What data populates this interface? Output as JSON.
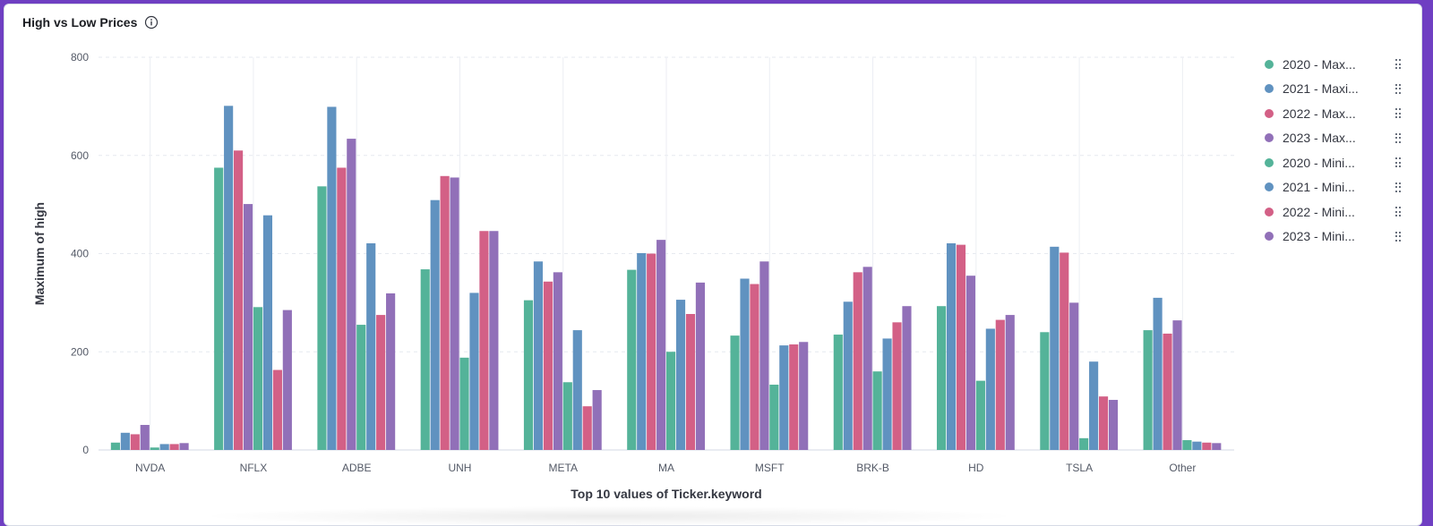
{
  "panel": {
    "title": "High vs Low Prices",
    "info_icon": "info-icon"
  },
  "colors": {
    "2020": "#54b399",
    "2021": "#6092c0",
    "2022": "#d36086",
    "2023": "#9170b8",
    "frame": "#6f3fc2"
  },
  "legend": {
    "items": [
      {
        "label": "2020 - Max...",
        "color": "#54b399"
      },
      {
        "label": "2021 - Maxi...",
        "color": "#6092c0"
      },
      {
        "label": "2022 - Max...",
        "color": "#d36086"
      },
      {
        "label": "2023 - Max...",
        "color": "#9170b8"
      },
      {
        "label": "2020 - Mini...",
        "color": "#54b399"
      },
      {
        "label": "2021 - Mini...",
        "color": "#6092c0"
      },
      {
        "label": "2022 - Mini...",
        "color": "#d36086"
      },
      {
        "label": "2023 - Mini...",
        "color": "#9170b8"
      }
    ]
  },
  "chart_data": {
    "type": "bar",
    "title": "High vs Low Prices",
    "xlabel": "Top 10 values of Ticker.keyword",
    "ylabel": "Maximum of high",
    "ylim": [
      0,
      800
    ],
    "yticks": [
      0,
      200,
      400,
      600,
      800
    ],
    "grid": true,
    "legend_position": "right",
    "categories": [
      "NVDA",
      "NFLX",
      "ADBE",
      "UNH",
      "META",
      "MA",
      "MSFT",
      "BRK-B",
      "HD",
      "TSLA",
      "Other"
    ],
    "series": [
      {
        "name": "2020 - Max...",
        "color": "#54b399",
        "values": [
          15,
          575,
          537,
          368,
          305,
          367,
          233,
          235,
          293,
          240,
          244
        ]
      },
      {
        "name": "2021 - Maxi...",
        "color": "#6092c0",
        "values": [
          35,
          701,
          699,
          509,
          384,
          401,
          349,
          302,
          421,
          414,
          310
        ]
      },
      {
        "name": "2022 - Max...",
        "color": "#d36086",
        "values": [
          32,
          610,
          575,
          558,
          343,
          400,
          338,
          362,
          418,
          402,
          237
        ]
      },
      {
        "name": "2023 - Max...",
        "color": "#9170b8",
        "values": [
          51,
          501,
          634,
          555,
          362,
          428,
          384,
          373,
          355,
          300,
          264
        ]
      },
      {
        "name": "2020 - Mini...",
        "color": "#54b399",
        "values": [
          5,
          291,
          255,
          188,
          138,
          200,
          133,
          160,
          141,
          24,
          20
        ]
      },
      {
        "name": "2021 - Mini...",
        "color": "#6092c0",
        "values": [
          12,
          478,
          421,
          320,
          244,
          306,
          213,
          227,
          247,
          180,
          17
        ]
      },
      {
        "name": "2022 - Mini...",
        "color": "#d36086",
        "values": [
          12,
          163,
          275,
          446,
          89,
          277,
          215,
          260,
          265,
          109,
          15
        ]
      },
      {
        "name": "2023 - Mini...",
        "color": "#9170b8",
        "values": [
          14,
          285,
          319,
          446,
          122,
          341,
          220,
          293,
          275,
          102,
          14
        ]
      }
    ]
  }
}
